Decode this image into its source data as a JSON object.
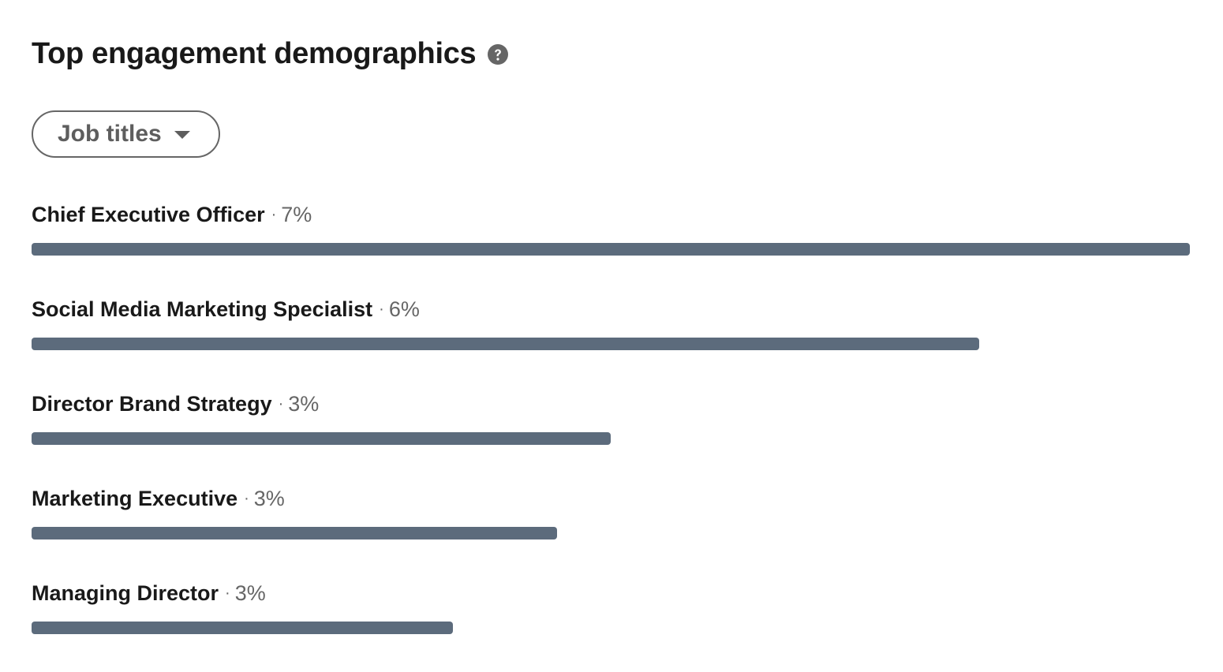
{
  "header": {
    "title": "Top engagement demographics",
    "help_icon": "question-circle-icon"
  },
  "filter": {
    "selected": "Job titles",
    "caret_icon": "caret-down-icon"
  },
  "colors": {
    "bar": "#5c6b7c",
    "title": "#1f1f1f",
    "muted": "#666666"
  },
  "demographics": [
    {
      "name": "Chief Executive Officer",
      "pct_label": "7%",
      "relative_share": 1.0
    },
    {
      "name": "Social Media Marketing Specialist",
      "pct_label": "6%",
      "relative_share": 0.818
    },
    {
      "name": "Director Brand Strategy",
      "pct_label": "3%",
      "relative_share": 0.5
    },
    {
      "name": "Marketing Executive",
      "pct_label": "3%",
      "relative_share": 0.454
    },
    {
      "name": "Managing Director",
      "pct_label": "3%",
      "relative_share": 0.364
    }
  ]
}
